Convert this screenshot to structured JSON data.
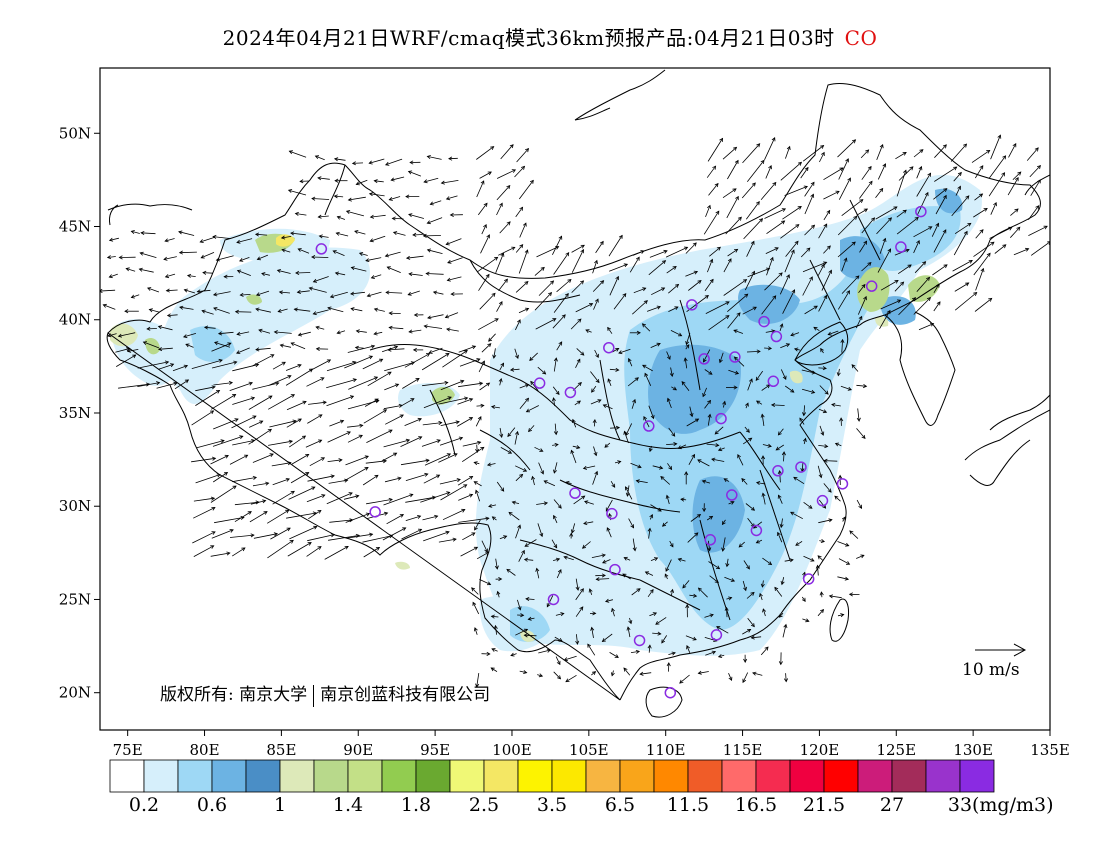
{
  "title": {
    "main": "2024年04月21日WRF/cmaq模式36km预报产品:04月21日03时",
    "species": "CO",
    "species_color": "#e01010"
  },
  "axes": {
    "lat_labels": [
      {
        "text": "50N",
        "deg": 50
      },
      {
        "text": "45N",
        "deg": 45
      },
      {
        "text": "40N",
        "deg": 40
      },
      {
        "text": "35N",
        "deg": 35
      },
      {
        "text": "30N",
        "deg": 30
      },
      {
        "text": "25N",
        "deg": 25
      },
      {
        "text": "20N",
        "deg": 20
      }
    ],
    "lon_labels": [
      {
        "text": "75E",
        "deg": 75
      },
      {
        "text": "80E",
        "deg": 80
      },
      {
        "text": "85E",
        "deg": 85
      },
      {
        "text": "90E",
        "deg": 90
      },
      {
        "text": "95E",
        "deg": 95
      },
      {
        "text": "100E",
        "deg": 100
      },
      {
        "text": "105E",
        "deg": 105
      },
      {
        "text": "110E",
        "deg": 110
      },
      {
        "text": "115E",
        "deg": 115
      },
      {
        "text": "120E",
        "deg": 120
      },
      {
        "text": "125E",
        "deg": 125
      },
      {
        "text": "130E",
        "deg": 130
      },
      {
        "text": "135E",
        "deg": 135
      }
    ],
    "lat_range": [
      18,
      53.5
    ],
    "lon_range": [
      73.2,
      135
    ]
  },
  "copyright": {
    "label": "版权所有: 南京大学",
    "company": "南京创蓝科技有限公司"
  },
  "wind_reference": {
    "label": "10 m/s"
  },
  "colorbar": {
    "colors": [
      "#ffffff",
      "#d6effb",
      "#9ed8f5",
      "#6cb3e3",
      "#4a8ec6",
      "#dde9b9",
      "#b8d98b",
      "#c3e087",
      "#92cc50",
      "#6aa930",
      "#f0f876",
      "#f4e764",
      "#fdf300",
      "#fce800",
      "#f7b541",
      "#f9a51a",
      "#ff8800",
      "#f05c28",
      "#ff6a6a",
      "#f52c50",
      "#f00040",
      "#ff0000",
      "#cc1c7a",
      "#a32c5a",
      "#9933cc",
      "#8a2be2"
    ],
    "labels": [
      {
        "text": "0.2",
        "index": 1
      },
      {
        "text": "0.6",
        "index": 3
      },
      {
        "text": "1",
        "index": 5
      },
      {
        "text": "1.4",
        "index": 7
      },
      {
        "text": "1.8",
        "index": 9
      },
      {
        "text": "2.5",
        "index": 11
      },
      {
        "text": "3.5",
        "index": 13
      },
      {
        "text": "6.5",
        "index": 15
      },
      {
        "text": "11.5",
        "index": 17
      },
      {
        "text": "16.5",
        "index": 19
      },
      {
        "text": "21.5",
        "index": 21
      },
      {
        "text": "27",
        "index": 23
      },
      {
        "text": "33",
        "index": 25
      }
    ],
    "unit": "(mg/m3)"
  },
  "stations": [
    {
      "lon": 87.6,
      "lat": 43.8
    },
    {
      "lon": 101.8,
      "lat": 36.6
    },
    {
      "lon": 103.8,
      "lat": 36.1
    },
    {
      "lon": 106.3,
      "lat": 38.5
    },
    {
      "lon": 111.7,
      "lat": 40.8
    },
    {
      "lon": 112.5,
      "lat": 37.9
    },
    {
      "lon": 114.5,
      "lat": 38.0
    },
    {
      "lon": 116.4,
      "lat": 39.9
    },
    {
      "lon": 117.2,
      "lat": 39.1
    },
    {
      "lon": 117.0,
      "lat": 36.7
    },
    {
      "lon": 113.6,
      "lat": 34.7
    },
    {
      "lon": 108.9,
      "lat": 34.3
    },
    {
      "lon": 104.1,
      "lat": 30.7
    },
    {
      "lon": 106.5,
      "lat": 29.6
    },
    {
      "lon": 114.3,
      "lat": 30.6
    },
    {
      "lon": 117.3,
      "lat": 31.9
    },
    {
      "lon": 118.8,
      "lat": 32.1
    },
    {
      "lon": 121.5,
      "lat": 31.2
    },
    {
      "lon": 120.2,
      "lat": 30.3
    },
    {
      "lon": 112.9,
      "lat": 28.2
    },
    {
      "lon": 115.9,
      "lat": 28.7
    },
    {
      "lon": 119.3,
      "lat": 26.1
    },
    {
      "lon": 113.3,
      "lat": 23.1
    },
    {
      "lon": 108.3,
      "lat": 22.8
    },
    {
      "lon": 106.7,
      "lat": 26.6
    },
    {
      "lon": 102.7,
      "lat": 25.0
    },
    {
      "lon": 91.1,
      "lat": 29.7
    },
    {
      "lon": 110.3,
      "lat": 20.0
    },
    {
      "lon": 123.4,
      "lat": 41.8
    },
    {
      "lon": 125.3,
      "lat": 43.9
    },
    {
      "lon": 126.6,
      "lat": 45.8
    }
  ]
}
